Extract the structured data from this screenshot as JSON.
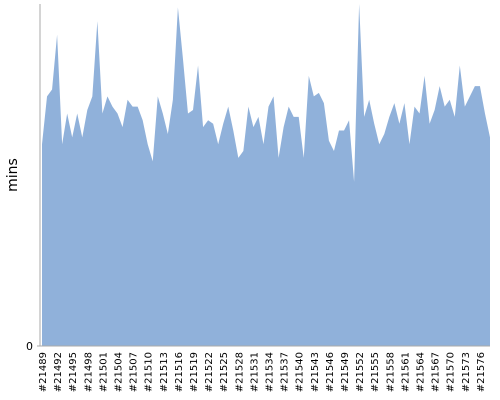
{
  "chart_data": {
    "type": "area",
    "y_label": "mins",
    "categories": [
      "#21489",
      null,
      null,
      "#21492",
      null,
      null,
      "#21495",
      null,
      null,
      "#21498",
      null,
      null,
      "#21501",
      null,
      null,
      "#21504",
      null,
      null,
      "#21507",
      null,
      null,
      "#21510",
      null,
      null,
      "#21513",
      null,
      null,
      "#21516",
      null,
      null,
      "#21519",
      null,
      null,
      "#21522",
      null,
      null,
      "#21525",
      null,
      null,
      "#21528",
      null,
      null,
      "#21531",
      null,
      null,
      "#21534",
      null,
      null,
      "#21537",
      null,
      null,
      "#21540",
      null,
      null,
      "#21543",
      null,
      null,
      "#21546",
      null,
      null,
      "#21549",
      null,
      null,
      "#21552",
      null,
      null,
      "#21555",
      null,
      null,
      "#21558",
      null,
      null,
      "#21561",
      null,
      null,
      "#21564",
      null,
      null,
      "#21567",
      null,
      null,
      "#21570",
      null,
      null,
      "#21573",
      null,
      null,
      "#21576",
      null,
      null
    ],
    "values": [
      59,
      73,
      75,
      91,
      59,
      68,
      61,
      68,
      61,
      69,
      73,
      95,
      68,
      73,
      70,
      68,
      64,
      72,
      70,
      70,
      66,
      59,
      54,
      73,
      68,
      62,
      72,
      99,
      84,
      68,
      69,
      82,
      64,
      66,
      65,
      59,
      65,
      70,
      63,
      55,
      57,
      70,
      64,
      67,
      59,
      70,
      73,
      55,
      64,
      70,
      67,
      67,
      55,
      79,
      73,
      74,
      71,
      60,
      57,
      63,
      63,
      66,
      48,
      100,
      67,
      72,
      65,
      59,
      62,
      67,
      71,
      65,
      71,
      59,
      70,
      68,
      79,
      65,
      69,
      76,
      70,
      72,
      67,
      82,
      70,
      73,
      76,
      76,
      68,
      61
    ],
    "color": "#90b1da",
    "ylim": [
      0,
      100
    ],
    "yticks": [
      0
    ]
  }
}
